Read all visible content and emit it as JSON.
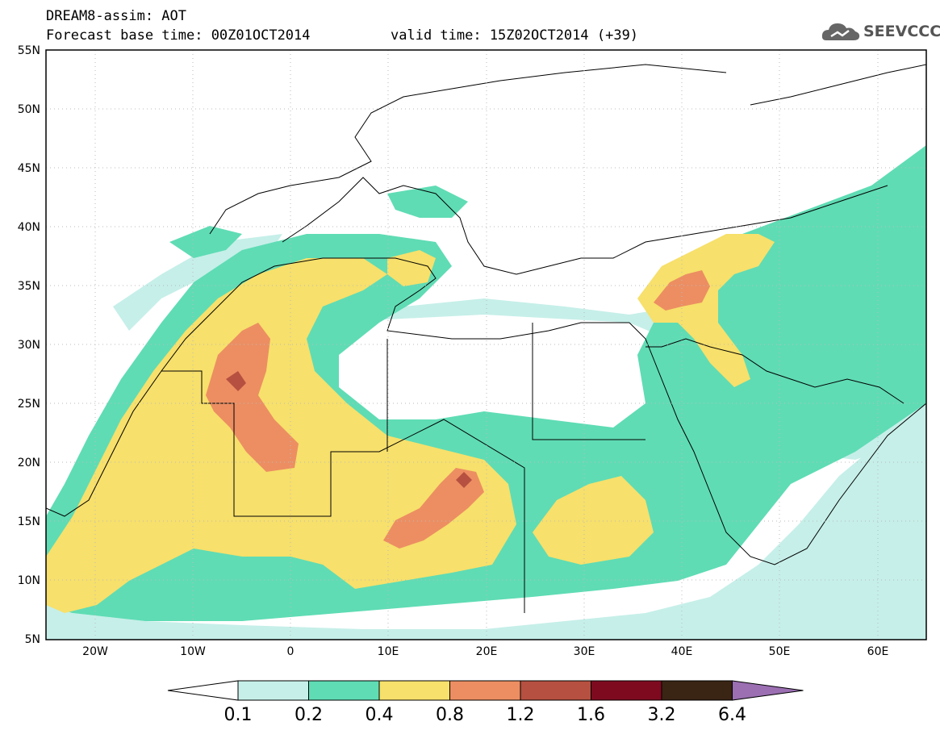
{
  "header": {
    "line1": "DREAM8-assim: AOT",
    "base_time": "Forecast base time: 00Z01OCT2014",
    "valid_time": "valid time: 15Z02OCT2014 (+39)"
  },
  "logo": {
    "text": "SEEVCCC",
    "icon": "cloud-icon"
  },
  "map": {
    "lat_ticks": [
      "55N",
      "50N",
      "45N",
      "40N",
      "35N",
      "30N",
      "25N",
      "20N",
      "15N",
      "10N",
      "5N"
    ],
    "lon_ticks": [
      "20W",
      "10W",
      "0",
      "10E",
      "20E",
      "30E",
      "40E",
      "50E",
      "60E"
    ],
    "lat_range": [
      5,
      55
    ],
    "lon_range": [
      -25,
      65
    ]
  },
  "colorbar": {
    "labels": [
      "0.1",
      "0.2",
      "0.4",
      "0.8",
      "1.2",
      "1.6",
      "3.2",
      "6.4"
    ],
    "colors": [
      "#ffffff",
      "#c6efe9",
      "#5fdcb4",
      "#f7e06b",
      "#ec8e62",
      "#b65040",
      "#7e0a20",
      "#3a2413",
      "#9b6fb2"
    ]
  }
}
